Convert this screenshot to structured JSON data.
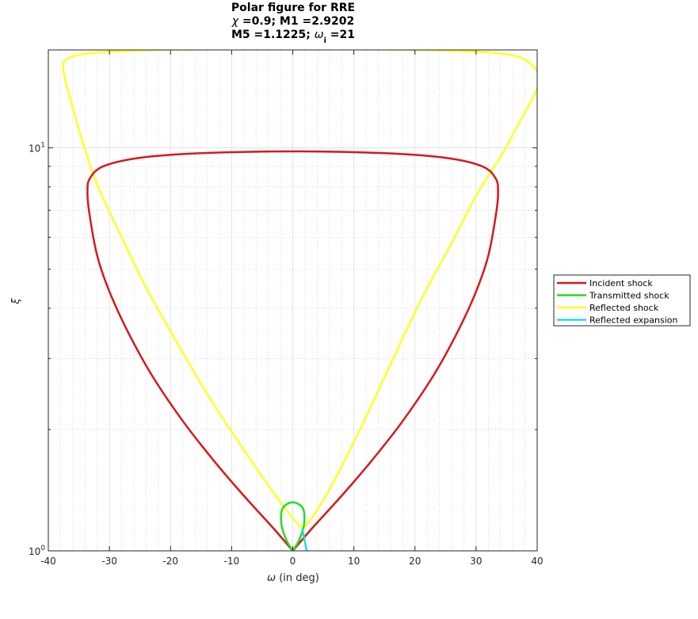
{
  "chart_data": {
    "type": "line",
    "title": {
      "line1": "Polar figure for RRE",
      "line2_sym": "χ",
      "line2_rest": " =0.9; M1 =2.9202",
      "line3_pre": "M5 =1.1225; ",
      "line3_sym": "ω",
      "line3_sub": "i",
      "line3_post": " =21"
    },
    "xlabel_sym": "ω",
    "xlabel_rest": " (in deg)",
    "ylabel": "ξ",
    "xlim": [
      -40,
      40
    ],
    "ylim": [
      1,
      17.5
    ],
    "yscale": "log",
    "grid": true,
    "minor_grid": true,
    "legend_position": "outside-right",
    "x_ticks": [
      -40,
      -30,
      -20,
      -10,
      0,
      10,
      20,
      30,
      40
    ],
    "x_tick_labels": [
      "-40",
      "-30",
      "-20",
      "-10",
      "0",
      "10",
      "20",
      "30",
      "40"
    ],
    "y_ticks": [
      1,
      10
    ],
    "y_tick_labels": [
      {
        "base": "10",
        "exp": "0"
      },
      {
        "base": "10",
        "exp": "1"
      }
    ],
    "series": [
      {
        "name": "Incident shock",
        "color": "#d7191c",
        "x": [
          0,
          -3,
          -8,
          -13,
          -18,
          -23,
          -27,
          -30,
          -32,
          -33.3,
          -33.6,
          -33.2,
          -31,
          -25,
          -15,
          0,
          15,
          25,
          31,
          33.2,
          33.6,
          33.3,
          32,
          30,
          27,
          23,
          18,
          13,
          8,
          3,
          0
        ],
        "y": [
          1,
          1.13,
          1.37,
          1.68,
          2.1,
          2.72,
          3.5,
          4.4,
          5.4,
          6.9,
          7.8,
          8.4,
          9.0,
          9.45,
          9.7,
          9.8,
          9.7,
          9.45,
          9.0,
          8.4,
          7.8,
          6.9,
          5.4,
          4.4,
          3.5,
          2.72,
          2.1,
          1.68,
          1.37,
          1.13,
          1
        ]
      },
      {
        "name": "Transmitted shock",
        "color": "#22dd22",
        "x": [
          0,
          -1,
          -1.8,
          -1.9,
          -1.6,
          -0.8,
          0,
          0.8,
          1.6,
          1.9,
          1.8,
          1,
          0
        ],
        "y": [
          1,
          1.06,
          1.15,
          1.23,
          1.28,
          1.31,
          1.32,
          1.31,
          1.28,
          1.23,
          1.15,
          1.06,
          1
        ]
      },
      {
        "name": "Reflected shock",
        "color": "#ffff22",
        "x": [
          1.6,
          -2,
          -8,
          -14,
          -19,
          -24,
          -28,
          -32,
          -34.5,
          -36.5,
          -37.5,
          -37,
          -33,
          -25,
          -15,
          0,
          15,
          25,
          33,
          37.5,
          40,
          40.2,
          39.5,
          37,
          34,
          30,
          26,
          21,
          16,
          11,
          6,
          3,
          1.6
        ],
        "y": [
          1.13,
          1.32,
          1.78,
          2.45,
          3.3,
          4.5,
          6.0,
          8.1,
          10.5,
          13.4,
          15.5,
          16.6,
          17.2,
          17.45,
          17.55,
          17.6,
          17.55,
          17.45,
          17.2,
          16.7,
          15.5,
          14.5,
          13.5,
          11.5,
          9.5,
          7.6,
          5.8,
          4.2,
          2.9,
          2.0,
          1.42,
          1.2,
          1.13
        ]
      },
      {
        "name": "Reflected expansion",
        "color": "#22dddd",
        "x": [
          1.6,
          2.0,
          2.4
        ],
        "y": [
          1.13,
          1.05,
          0.98
        ]
      }
    ]
  }
}
